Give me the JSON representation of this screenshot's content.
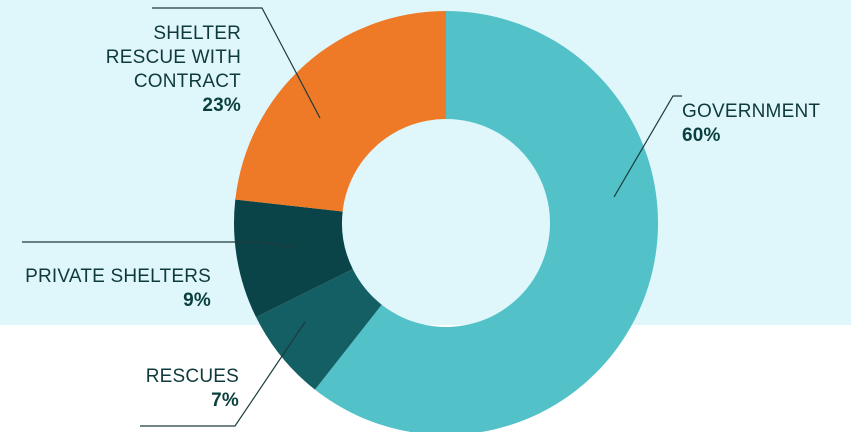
{
  "chart_data": {
    "type": "pie",
    "donut": true,
    "slices": [
      {
        "label": "GOVERNMENT",
        "value": 60,
        "value_label": "60%",
        "color": "#52c1c8"
      },
      {
        "label": "RESCUES",
        "value": 7,
        "value_label": "7%",
        "color": "#135f63"
      },
      {
        "label": "PRIVATE SHELTERS",
        "value": 9,
        "value_label": "9%",
        "color": "#0b4448"
      },
      {
        "label": "SHELTER\nRESCUE WITH\nCONTRACT",
        "value": 23,
        "value_label": "23%",
        "color": "#ee7a27"
      }
    ],
    "legend": "none",
    "background_color": "#dff7fa"
  }
}
